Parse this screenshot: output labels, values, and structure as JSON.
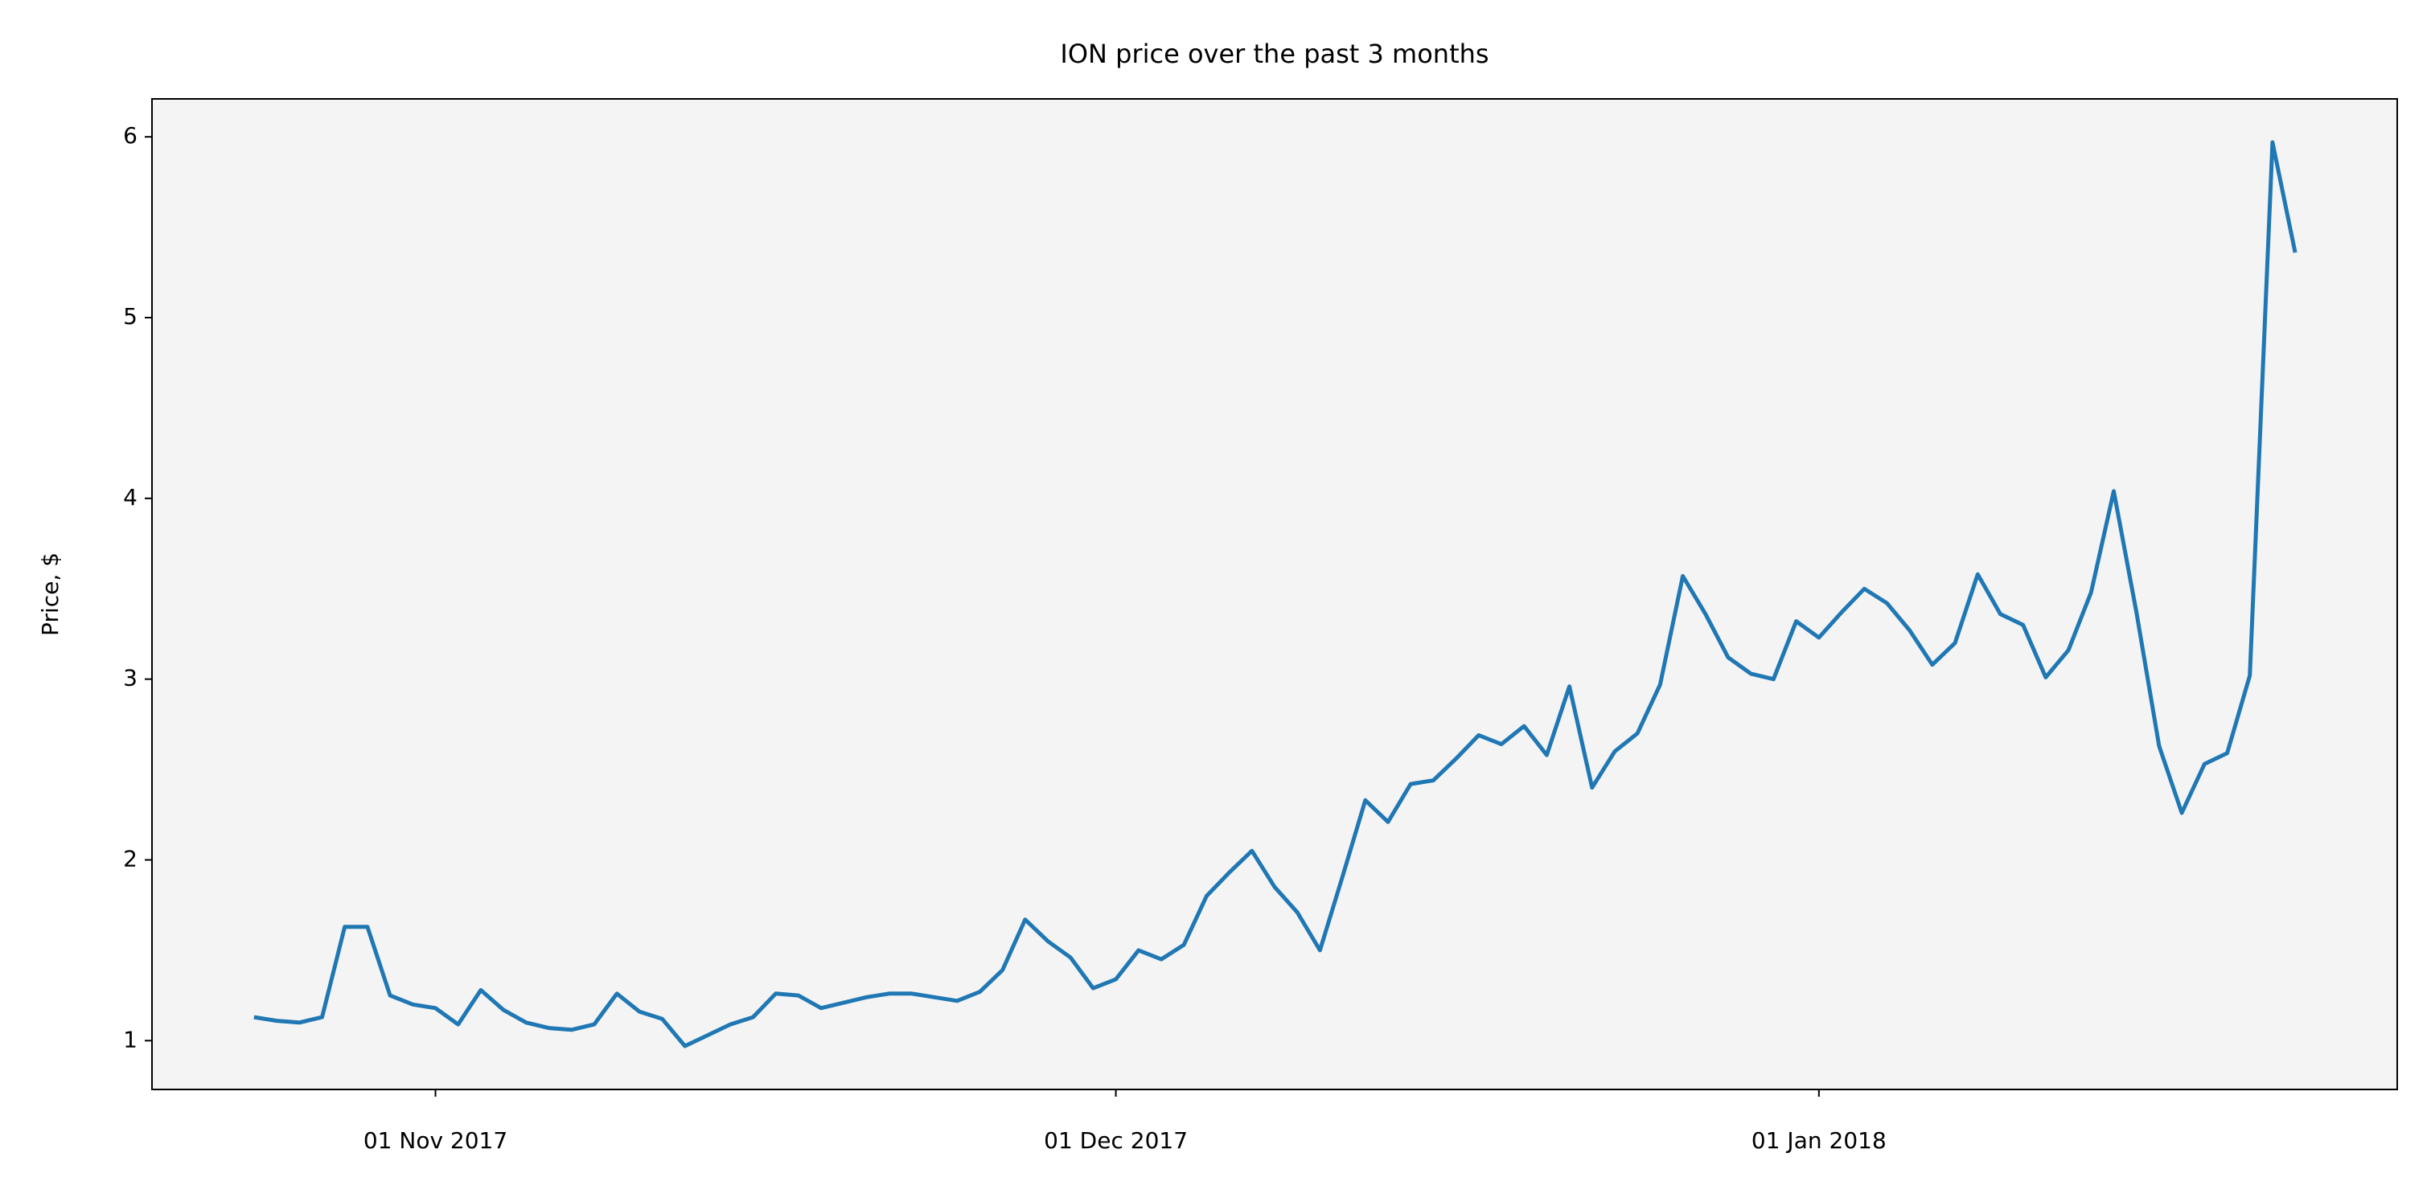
{
  "chart_data": {
    "type": "line",
    "title": "ION price over the past 3 months",
    "ylabel": "Price, $",
    "x": [
      "2017-10-24",
      "2017-10-25",
      "2017-10-26",
      "2017-10-27",
      "2017-10-28",
      "2017-10-29",
      "2017-10-30",
      "2017-10-31",
      "2017-11-01",
      "2017-11-02",
      "2017-11-03",
      "2017-11-04",
      "2017-11-05",
      "2017-11-06",
      "2017-11-07",
      "2017-11-08",
      "2017-11-09",
      "2017-11-10",
      "2017-11-11",
      "2017-11-12",
      "2017-11-13",
      "2017-11-14",
      "2017-11-15",
      "2017-11-16",
      "2017-11-17",
      "2017-11-18",
      "2017-11-19",
      "2017-11-20",
      "2017-11-21",
      "2017-11-22",
      "2017-11-23",
      "2017-11-24",
      "2017-11-25",
      "2017-11-26",
      "2017-11-27",
      "2017-11-28",
      "2017-11-29",
      "2017-11-30",
      "2017-12-01",
      "2017-12-02",
      "2017-12-03",
      "2017-12-04",
      "2017-12-05",
      "2017-12-06",
      "2017-12-07",
      "2017-12-08",
      "2017-12-09",
      "2017-12-10",
      "2017-12-11",
      "2017-12-12",
      "2017-12-13",
      "2017-12-14",
      "2017-12-15",
      "2017-12-16",
      "2017-12-17",
      "2017-12-18",
      "2017-12-19",
      "2017-12-20",
      "2017-12-21",
      "2017-12-22",
      "2017-12-23",
      "2017-12-24",
      "2017-12-25",
      "2017-12-26",
      "2017-12-27",
      "2017-12-28",
      "2017-12-29",
      "2017-12-30",
      "2017-12-31",
      "2018-01-01",
      "2018-01-02",
      "2018-01-03",
      "2018-01-04",
      "2018-01-05",
      "2018-01-06",
      "2018-01-07",
      "2018-01-08",
      "2018-01-09",
      "2018-01-10",
      "2018-01-11",
      "2018-01-12",
      "2018-01-13",
      "2018-01-14",
      "2018-01-15",
      "2018-01-16",
      "2018-01-17",
      "2018-01-18",
      "2018-01-19",
      "2018-01-20",
      "2018-01-21",
      "2018-01-22"
    ],
    "series": [
      {
        "name": "ION",
        "color": "#1f77b4",
        "values": [
          1.13,
          1.11,
          1.1,
          1.13,
          1.63,
          1.63,
          1.25,
          1.2,
          1.18,
          1.09,
          1.28,
          1.17,
          1.1,
          1.07,
          1.06,
          1.09,
          1.26,
          1.16,
          1.12,
          0.97,
          1.03,
          1.09,
          1.13,
          1.26,
          1.25,
          1.18,
          1.21,
          1.24,
          1.26,
          1.26,
          1.24,
          1.22,
          1.27,
          1.39,
          1.67,
          1.55,
          1.46,
          1.29,
          1.34,
          1.5,
          1.45,
          1.53,
          1.8,
          1.93,
          2.05,
          1.85,
          1.71,
          1.5,
          1.91,
          2.33,
          2.21,
          2.42,
          2.44,
          2.56,
          2.69,
          2.64,
          2.74,
          2.58,
          2.96,
          2.4,
          2.6,
          2.7,
          2.97,
          3.57,
          3.36,
          3.12,
          3.03,
          3.0,
          3.32,
          3.23,
          3.37,
          3.5,
          3.42,
          3.27,
          3.08,
          3.2,
          3.58,
          3.36,
          3.3,
          3.01,
          3.16,
          3.48,
          4.04,
          3.37,
          2.63,
          2.26,
          2.53,
          2.59,
          3.02,
          5.97,
          5.36
        ]
      }
    ],
    "xlim": [
      "2017-10-19T12:00",
      "2018-01-26T12:00"
    ],
    "xticks": [
      {
        "value": "2017-11-01",
        "label": "01 Nov 2017"
      },
      {
        "value": "2017-12-01",
        "label": "01 Dec 2017"
      },
      {
        "value": "2018-01-01",
        "label": "01 Jan 2018"
      }
    ],
    "ylim": [
      0.73,
      6.21
    ],
    "yticks": [
      1,
      2,
      3,
      4,
      5,
      6
    ],
    "grid": false,
    "background": "#f4f4f4"
  }
}
